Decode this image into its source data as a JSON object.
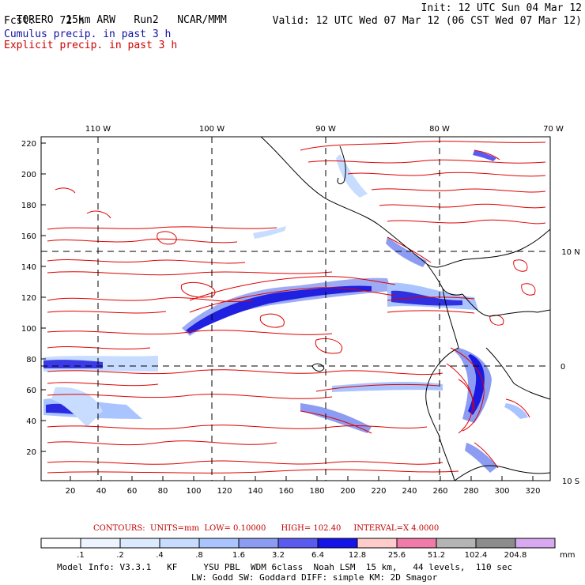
{
  "header": {
    "model": "TORERO",
    "resolution": "15km ARW",
    "run": "Run2",
    "org": "NCAR/MMM",
    "init": "Init: 12 UTC Sun 04 Mar 12",
    "fcst_label": "Fcst:",
    "fcst_value": "72 h",
    "valid": "Valid: 12 UTC Wed 07 Mar 12 (06 CST Wed 07 Mar 12)",
    "legend_line1": "Cumulus precip. in past 3 h",
    "legend_line2": "Explicit precip. in past 3 h"
  },
  "map": {
    "top_lon_labels": [
      "110 W",
      "100 W",
      "90 W",
      "80 W",
      "70 W"
    ],
    "right_lat_labels": [
      "10 N",
      "0",
      "10 S"
    ],
    "y_ticks": [
      "220",
      "200",
      "180",
      "160",
      "140",
      "120",
      "100",
      "80",
      "60",
      "40",
      "20"
    ],
    "x_ticks": [
      "20",
      "40",
      "60",
      "80",
      "100",
      "120",
      "140",
      "160",
      "180",
      "200",
      "220",
      "240",
      "260",
      "280",
      "300",
      "320"
    ],
    "colors": {
      "explicit_contour": "#e00000",
      "coast": "#000000",
      "grid": "#000000"
    }
  },
  "contour_info": {
    "label": "CONTOURS:",
    "units": "UNITS=mm",
    "low": "LOW= 0.10000",
    "high": "HIGH= 102.40",
    "interval": "INTERVAL=X 4.0000"
  },
  "colorbar": {
    "labels": [
      ".1",
      ".2",
      ".4",
      ".8",
      "1.6",
      "3.2",
      "6.4",
      "12.8",
      "25.6",
      "51.2",
      "102.4",
      "204.8"
    ],
    "unit": "mm",
    "colors": [
      "#ffffff",
      "#eef4ff",
      "#dceaff",
      "#c8dcff",
      "#aac4ff",
      "#8c9cf2",
      "#5a5af0",
      "#1414e8",
      "#ffcccc",
      "#f07aa8",
      "#b4b4b4",
      "#8c8c8c",
      "#d8a8f0"
    ]
  },
  "footer": {
    "line1": "Model Info: V3.3.1   KF     YSU PBL  WDM 6class  Noah LSM  15 km,   44 levels,  110 sec",
    "line2": "LW: Godd SW: Goddard DIFF: simple KM: 2D Smagor"
  }
}
